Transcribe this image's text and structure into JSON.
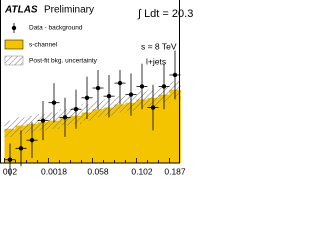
{
  "chart_data": {
    "type": "bar",
    "label": "ATLAS",
    "sublabel": "Preliminary",
    "annotations": [
      "∫ Ldt = 20.3",
      "s = 8 TeV",
      "l+jets"
    ],
    "categories": [
      "002",
      null,
      null,
      null,
      "0.0018",
      null,
      null,
      null,
      "0.058",
      null,
      null,
      null,
      "0.102",
      null,
      null,
      "0.187"
    ],
    "ylim": [
      0,
      100
    ],
    "series": [
      {
        "name": "Data - background",
        "color": "#000000",
        "values": [
          2,
          9,
          14,
          26,
          37,
          28,
          33,
          40,
          46,
          41,
          49,
          42,
          47,
          34,
          47,
          54
        ],
        "errors": [
          10,
          11,
          11,
          12,
          12,
          12,
          12,
          13,
          13,
          13,
          13,
          13,
          14,
          14,
          14,
          15
        ]
      },
      {
        "name": "s-channel",
        "color": "#f5c400",
        "values": [
          21,
          23,
          24,
          25,
          26,
          28,
          29,
          31,
          33,
          34,
          36,
          37,
          39,
          40,
          42,
          45
        ]
      },
      {
        "name": "Post-fit bkg. uncertainty",
        "color": "#888888",
        "values": [
          5,
          5,
          5,
          5,
          5,
          5,
          5,
          5,
          5,
          5,
          5,
          5,
          5,
          5,
          5,
          5
        ]
      }
    ]
  }
}
